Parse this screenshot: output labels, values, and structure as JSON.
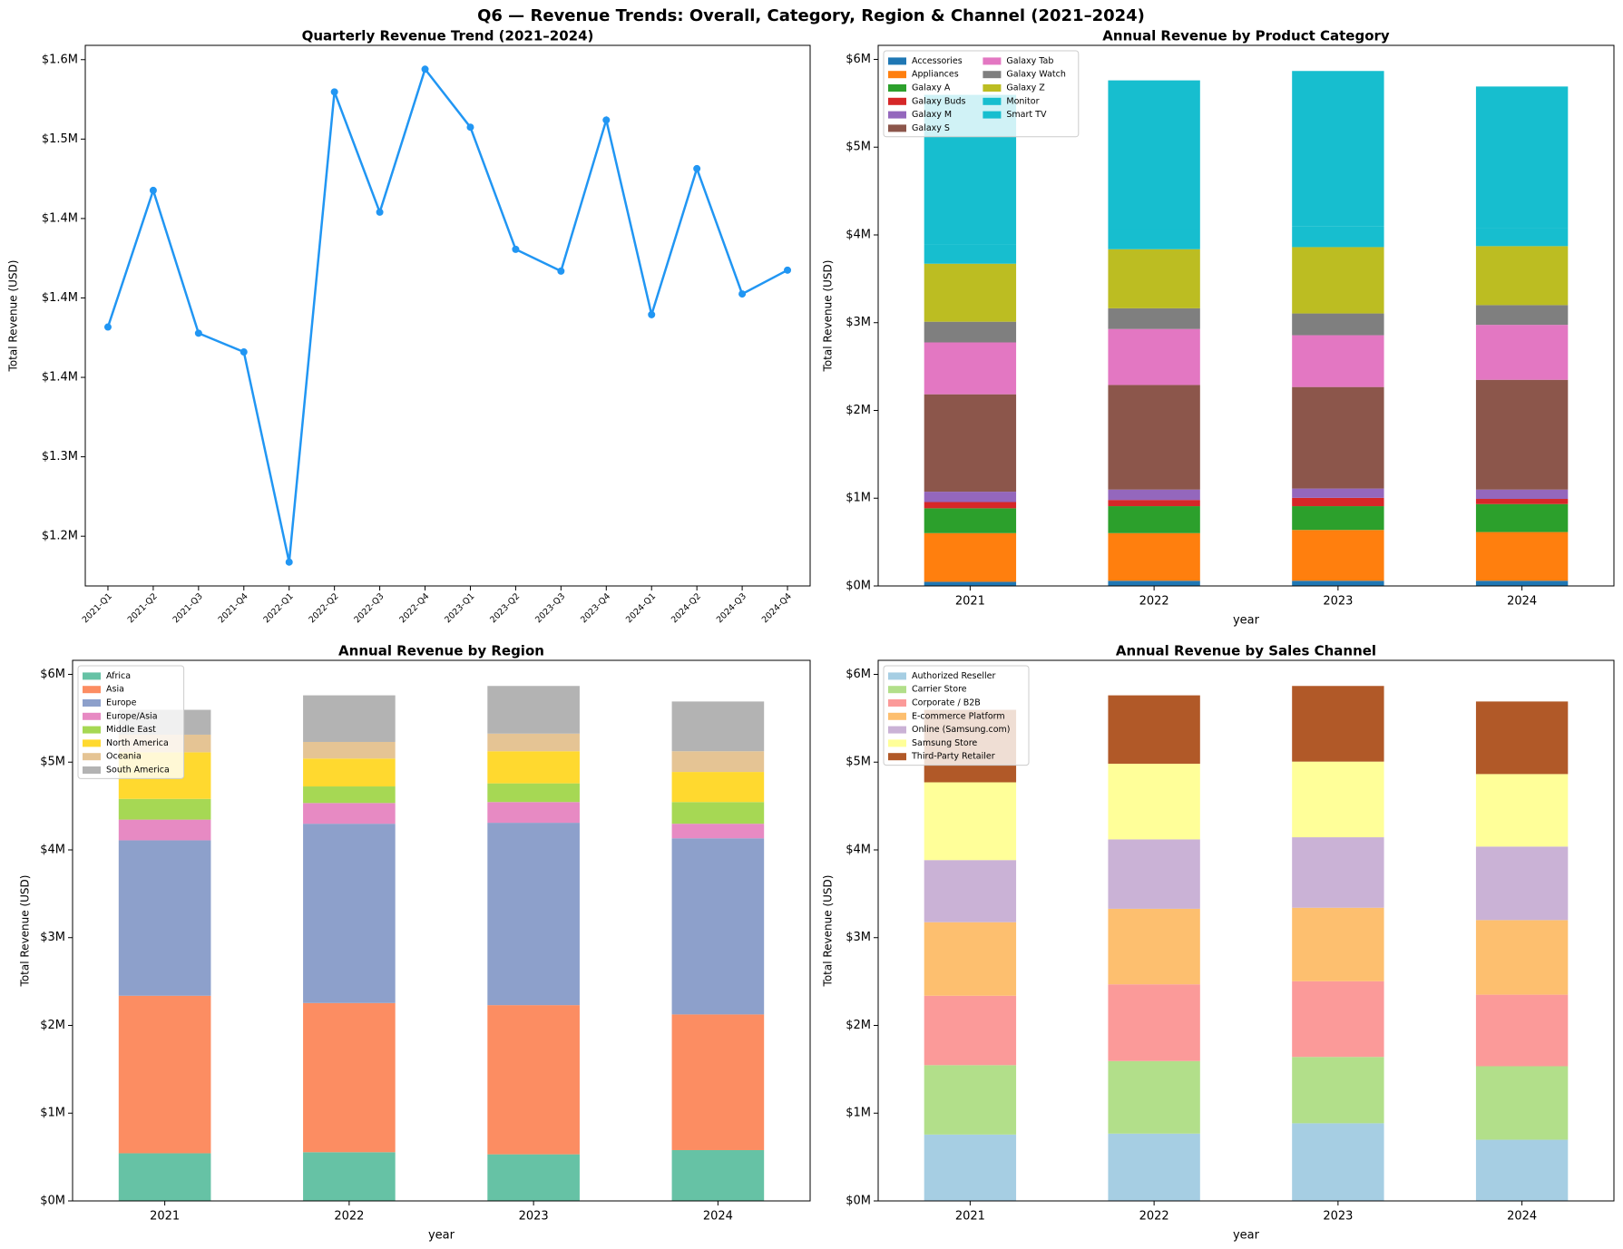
{
  "title": "Q6 — Revenue Trends: Overall, Category, Region & Channel (2021–2024)",
  "chart_data": [
    {
      "type": "line",
      "title": "Quarterly Revenue Trend (2021–2024)",
      "ylabel": "Total Revenue (USD)",
      "categories": [
        "2021-Q1",
        "2021-Q2",
        "2021-Q3",
        "2021-Q4",
        "2022-Q1",
        "2022-Q2",
        "2022-Q3",
        "2022-Q4",
        "2023-Q1",
        "2023-Q2",
        "2023-Q3",
        "2023-Q4",
        "2024-Q1",
        "2024-Q2",
        "2024-Q3",
        "2024-Q4"
      ],
      "values": [
        1381700,
        1467700,
        1377800,
        1366000,
        1233700,
        1529700,
        1454000,
        1544000,
        1507500,
        1430600,
        1416900,
        1512000,
        1389500,
        1481400,
        1402500,
        1417500
      ],
      "color": "#2196f3",
      "ylim": [
        1218700,
        1559000
      ],
      "yticks": [
        {
          "value": 1250000,
          "label": "$1.2M"
        },
        {
          "value": 1300000,
          "label": "$1.3M"
        },
        {
          "value": 1350000,
          "label": "$1.4M"
        },
        {
          "value": 1400000,
          "label": "$1.4M"
        },
        {
          "value": 1450000,
          "label": "$1.4M"
        },
        {
          "value": 1500000,
          "label": "$1.5M"
        },
        {
          "value": 1550000,
          "label": "$1.6M"
        }
      ]
    },
    {
      "type": "bar",
      "stacked": true,
      "title": "Annual Revenue by Product Category",
      "ylabel": "Total Revenue (USD)",
      "xlabel": "year",
      "categories": [
        "2021",
        "2022",
        "2023",
        "2024"
      ],
      "legend": "upper left",
      "legend_columns": 2,
      "series": [
        {
          "name": "Accessories",
          "color": "#1f77b4",
          "values": [
            47000,
            59000,
            59000,
            59000
          ]
        },
        {
          "name": "Appliances",
          "color": "#ff7f0e",
          "values": [
            555000,
            543000,
            579000,
            555000
          ]
        },
        {
          "name": "Galaxy A",
          "color": "#2ca02c",
          "values": [
            283000,
            307000,
            271000,
            319000
          ]
        },
        {
          "name": "Galaxy Buds",
          "color": "#d62728",
          "values": [
            71000,
            71000,
            95000,
            59000
          ]
        },
        {
          "name": "Galaxy M",
          "color": "#9467bd",
          "values": [
            118000,
            118000,
            106000,
            106000
          ]
        },
        {
          "name": "Galaxy S",
          "color": "#8c564b",
          "values": [
            1110000,
            1192000,
            1157000,
            1251000
          ]
        },
        {
          "name": "Galaxy Tab",
          "color": "#e377c2",
          "values": [
            591000,
            638000,
            590000,
            626000
          ]
        },
        {
          "name": "Galaxy Watch",
          "color": "#7f7f7f",
          "values": [
            236000,
            236000,
            248000,
            225000
          ]
        },
        {
          "name": "Galaxy Z",
          "color": "#bcbd22",
          "values": [
            661000,
            673000,
            756000,
            672000
          ]
        },
        {
          "name": "Monitor",
          "color": "#17becf",
          "values": [
            220000,
            230000,
            240000,
            210000
          ]
        },
        {
          "name": "Smart TV",
          "color": "#17becf",
          "values": [
            1704000,
            1694000,
            1767000,
            1609000
          ]
        }
      ],
      "ylim": [
        0,
        6160000
      ],
      "yticks": [
        {
          "value": 0,
          "label": "$0M"
        },
        {
          "value": 1000000,
          "label": "$1M"
        },
        {
          "value": 2000000,
          "label": "$2M"
        },
        {
          "value": 3000000,
          "label": "$3M"
        },
        {
          "value": 4000000,
          "label": "$4M"
        },
        {
          "value": 5000000,
          "label": "$5M"
        },
        {
          "value": 6000000,
          "label": "$6M"
        }
      ]
    },
    {
      "type": "bar",
      "stacked": true,
      "title": "Annual Revenue by Region",
      "ylabel": "Total Revenue (USD)",
      "xlabel": "year",
      "categories": [
        "2021",
        "2022",
        "2023",
        "2024"
      ],
      "legend": "upper left",
      "legend_columns": 1,
      "series": [
        {
          "name": "Africa",
          "color": "#66c2a5",
          "values": [
            543000,
            555000,
            531000,
            579000
          ]
        },
        {
          "name": "Asia",
          "color": "#fc8d62",
          "values": [
            1795000,
            1700000,
            1700000,
            1546000
          ]
        },
        {
          "name": "Europe",
          "color": "#8da0cb",
          "values": [
            1771000,
            2043000,
            2078000,
            2007000
          ]
        },
        {
          "name": "Europe/Asia",
          "color": "#e78ac3",
          "values": [
            236000,
            236000,
            236000,
            166000
          ]
        },
        {
          "name": "Middle East",
          "color": "#a6d854",
          "values": [
            236000,
            189000,
            213000,
            247000
          ]
        },
        {
          "name": "North America",
          "color": "#ffd92f",
          "values": [
            531000,
            318000,
            366000,
            343000
          ]
        },
        {
          "name": "Oceania",
          "color": "#e5c494",
          "values": [
            201000,
            189000,
            201000,
            236000
          ]
        },
        {
          "name": "South America",
          "color": "#b3b3b3",
          "values": [
            283000,
            531000,
            543000,
            567000
          ]
        }
      ],
      "ylim": [
        0,
        6160000
      ],
      "yticks": [
        {
          "value": 0,
          "label": "$0M"
        },
        {
          "value": 1000000,
          "label": "$1M"
        },
        {
          "value": 2000000,
          "label": "$2M"
        },
        {
          "value": 3000000,
          "label": "$3M"
        },
        {
          "value": 4000000,
          "label": "$4M"
        },
        {
          "value": 5000000,
          "label": "$5M"
        },
        {
          "value": 6000000,
          "label": "$6M"
        }
      ]
    },
    {
      "type": "bar",
      "stacked": true,
      "title": "Annual Revenue by Sales Channel",
      "ylabel": "Total Revenue (USD)",
      "xlabel": "year",
      "categories": [
        "2021",
        "2022",
        "2023",
        "2024"
      ],
      "legend": "upper left",
      "legend_columns": 1,
      "series": [
        {
          "name": "Authorized Reseller",
          "color": "#a6cee3",
          "values": [
            756000,
            767000,
            885000,
            697000
          ]
        },
        {
          "name": "Carrier Store",
          "color": "#b2df8a",
          "values": [
            791000,
            827000,
            756000,
            838000
          ]
        },
        {
          "name": "Corporate / B2B",
          "color": "#fb9a99",
          "values": [
            791000,
            874000,
            862000,
            815000
          ]
        },
        {
          "name": "E-commerce Platform",
          "color": "#fdbf6f",
          "values": [
            838000,
            861000,
            838000,
            850000
          ]
        },
        {
          "name": "Online (Samsung.com)",
          "color": "#cab2d6",
          "values": [
            708000,
            791000,
            803000,
            838000
          ]
        },
        {
          "name": "Samsung Store",
          "color": "#ffff99",
          "values": [
            886000,
            862000,
            862000,
            826000
          ]
        },
        {
          "name": "Third-Party Retailer",
          "color": "#b15928",
          "values": [
            826000,
            779000,
            862000,
            827000
          ]
        }
      ],
      "ylim": [
        0,
        6160000
      ],
      "yticks": [
        {
          "value": 0,
          "label": "$0M"
        },
        {
          "value": 1000000,
          "label": "$1M"
        },
        {
          "value": 2000000,
          "label": "$2M"
        },
        {
          "value": 3000000,
          "label": "$3M"
        },
        {
          "value": 4000000,
          "label": "$4M"
        },
        {
          "value": 5000000,
          "label": "$5M"
        },
        {
          "value": 6000000,
          "label": "$6M"
        }
      ]
    }
  ]
}
